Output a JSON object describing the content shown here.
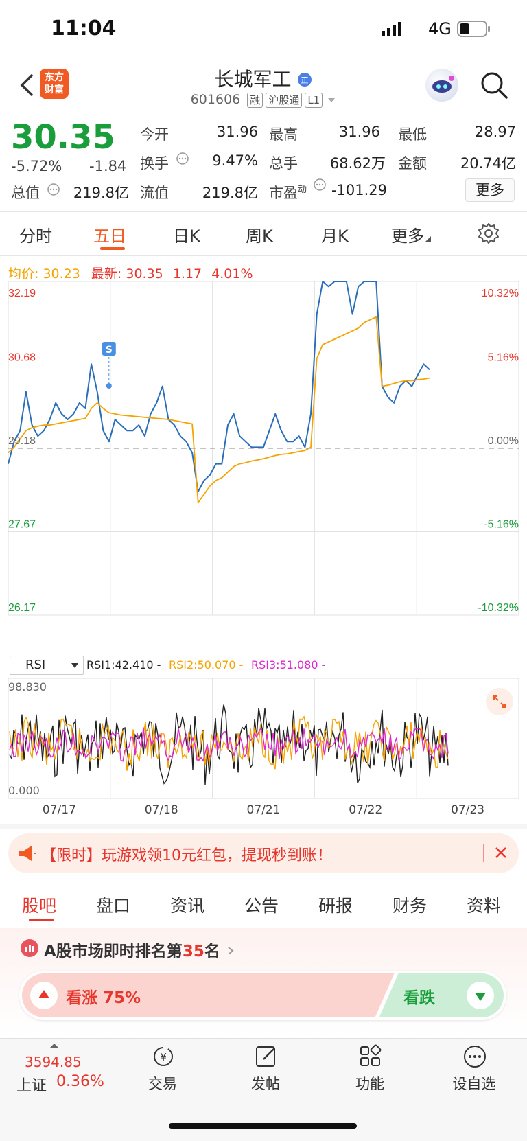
{
  "status": {
    "time": "11:04",
    "network": "4G"
  },
  "header": {
    "logo_line1": "东方",
    "logo_line2": "财富",
    "name": "长城军工",
    "code": "601606",
    "tags": [
      "融",
      "沪股通",
      "L1"
    ]
  },
  "quote": {
    "price": "30.35",
    "pct": "-5.72%",
    "chg": "-1.84",
    "open_label": "今开",
    "open": "31.96",
    "high_label": "最高",
    "high": "31.96",
    "low_label": "最低",
    "low": "28.97",
    "turnover_label": "换手",
    "turnover": "9.47%",
    "volume_label": "总手",
    "volume": "68.62万",
    "amount_label": "金额",
    "amount": "20.74亿",
    "mcap_label": "总值",
    "mcap": "219.8亿",
    "float_label": "流值",
    "float": "219.8亿",
    "pe_label": "市盈",
    "pe_sup": "动",
    "pe": "-101.29",
    "more": "更多"
  },
  "tabs": [
    "分时",
    "五日",
    "日K",
    "周K",
    "月K",
    "更多"
  ],
  "active_tab": "五日",
  "chart_info": {
    "avg_label": "均价:",
    "avg": "30.23",
    "latest_label": "最新:",
    "latest": "30.35",
    "chg": "1.17",
    "pct": "4.01%"
  },
  "chart_data": {
    "type": "line",
    "x_labels": [
      "07/17",
      "07/18",
      "07/21",
      "07/22",
      "07/23"
    ],
    "y_left_ticks": [
      "32.19",
      "30.68",
      "29.18",
      "27.67",
      "26.17"
    ],
    "y_right_ticks": [
      "10.32%",
      "5.16%",
      "0.00%",
      "-5.16%",
      "-10.32%"
    ],
    "ylim": [
      26.17,
      32.19
    ],
    "reference": 29.18,
    "marker": "S",
    "series": [
      {
        "name": "价格",
        "color": "#2a6ebb",
        "values": [
          28.9,
          29.3,
          29.5,
          30.2,
          29.6,
          29.4,
          29.5,
          29.7,
          30.0,
          29.8,
          29.7,
          29.8,
          30.0,
          29.9,
          30.7,
          30.2,
          29.5,
          29.3,
          29.7,
          29.6,
          29.5,
          29.5,
          29.6,
          29.4,
          29.8,
          30.0,
          30.3,
          29.7,
          29.6,
          29.4,
          29.3,
          29.1,
          28.4,
          28.6,
          28.7,
          28.9,
          28.9,
          29.6,
          29.8,
          29.4,
          29.3,
          29.2,
          29.2,
          29.2,
          29.5,
          29.8,
          29.5,
          29.3,
          29.3,
          29.4,
          29.2,
          29.8,
          31.6,
          32.19,
          32.1,
          32.19,
          32.19,
          32.19,
          31.6,
          32.1,
          32.19,
          32.19,
          32.19,
          30.3,
          30.1,
          30.0,
          30.3,
          30.4,
          30.3,
          30.5,
          30.7,
          30.6
        ]
      },
      {
        "name": "均价",
        "color": "#f5a300",
        "values": [
          29.1,
          29.2,
          29.35,
          29.5,
          29.55,
          29.58,
          29.6,
          29.6,
          29.62,
          29.64,
          29.66,
          29.68,
          29.7,
          29.72,
          29.9,
          30.0,
          29.9,
          29.82,
          29.8,
          29.78,
          29.77,
          29.76,
          29.75,
          29.74,
          29.73,
          29.72,
          29.71,
          29.7,
          29.68,
          29.66,
          29.64,
          29.62,
          28.2,
          28.35,
          28.5,
          28.6,
          28.65,
          28.75,
          28.85,
          28.9,
          28.92,
          28.95,
          28.97,
          28.99,
          29.02,
          29.05,
          29.07,
          29.08,
          29.1,
          29.12,
          29.14,
          29.2,
          30.8,
          31.05,
          31.1,
          31.15,
          31.2,
          31.25,
          31.3,
          31.35,
          31.45,
          31.5,
          31.55,
          30.3,
          30.32,
          30.35,
          30.38,
          30.4,
          30.4,
          30.42,
          30.43,
          30.45
        ]
      }
    ]
  },
  "rsi": {
    "select": "RSI",
    "rsi1": "RSI1:42.410 -",
    "rsi2": "RSI2:50.070 -",
    "rsi3": "RSI3:51.080 -",
    "top": "98.830",
    "bottom": "0.000"
  },
  "banner": {
    "text": "【限时】玩游戏领10元红包，提现秒到账！"
  },
  "section_tabs": [
    "股吧",
    "盘口",
    "资讯",
    "公告",
    "研报",
    "财务",
    "资料"
  ],
  "active_section": "股吧",
  "rank": {
    "prefix": "A股市场即时排名第",
    "num": "35",
    "suffix": "名",
    "up_label": "看涨",
    "up_pct": "75%",
    "down_label": "看跌",
    "up_fraction": 0.75
  },
  "bottom_nav": {
    "index_value": "3594.85",
    "index_name": "上证",
    "index_pct": "0.36%",
    "items": [
      "交易",
      "发帖",
      "功能",
      "设自选"
    ]
  }
}
